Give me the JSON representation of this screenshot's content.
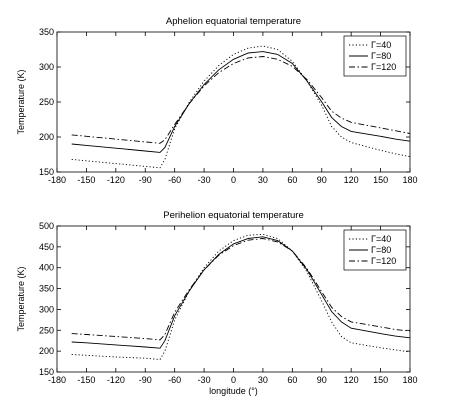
{
  "chart_data": [
    {
      "type": "line",
      "title": "Aphelion equatorial temperature",
      "xlabel": "",
      "ylabel": "Temperature (K)",
      "xlim": [
        -180,
        180
      ],
      "ylim": [
        150,
        350
      ],
      "xticks": [
        -180,
        -150,
        -120,
        -90,
        -60,
        -30,
        0,
        30,
        60,
        90,
        120,
        150,
        180
      ],
      "yticks": [
        150,
        200,
        250,
        300,
        350
      ],
      "legend_position": "top-right",
      "grid": false,
      "series": [
        {
          "name": "Γ=40",
          "style": "dotted",
          "x": [
            -165,
            -150,
            -120,
            -90,
            -75,
            -70,
            -60,
            -45,
            -30,
            -15,
            0,
            15,
            30,
            45,
            60,
            75,
            90,
            100,
            110,
            120,
            150,
            165,
            180
          ],
          "y": [
            168,
            166,
            162,
            158,
            156,
            168,
            212,
            250,
            280,
            302,
            318,
            327,
            330,
            325,
            308,
            280,
            245,
            215,
            200,
            192,
            181,
            176,
            172
          ]
        },
        {
          "name": "Γ=80",
          "style": "solid",
          "x": [
            -165,
            -150,
            -120,
            -90,
            -75,
            -70,
            -60,
            -45,
            -30,
            -15,
            0,
            15,
            30,
            45,
            60,
            75,
            90,
            100,
            110,
            120,
            150,
            165,
            180
          ],
          "y": [
            190,
            188,
            184,
            180,
            178,
            185,
            215,
            248,
            275,
            296,
            311,
            320,
            322,
            318,
            305,
            280,
            250,
            228,
            215,
            208,
            201,
            197,
            194
          ]
        },
        {
          "name": "Γ=120",
          "style": "dashdot",
          "x": [
            -165,
            -150,
            -120,
            -90,
            -75,
            -70,
            -60,
            -45,
            -30,
            -15,
            0,
            15,
            30,
            45,
            60,
            75,
            90,
            100,
            110,
            120,
            150,
            165,
            180
          ],
          "y": [
            203,
            201,
            197,
            193,
            191,
            196,
            218,
            248,
            273,
            292,
            305,
            313,
            315,
            311,
            301,
            282,
            256,
            237,
            227,
            221,
            213,
            209,
            205
          ]
        }
      ]
    },
    {
      "type": "line",
      "title": "Perihelion equatorial temperature",
      "xlabel": "longitude (°)",
      "ylabel": "Temperature (K)",
      "xlim": [
        -180,
        180
      ],
      "ylim": [
        150,
        500
      ],
      "xticks": [
        -180,
        -150,
        -120,
        -90,
        -60,
        -30,
        0,
        30,
        60,
        90,
        120,
        150,
        180
      ],
      "yticks": [
        150,
        200,
        250,
        300,
        350,
        400,
        450,
        500
      ],
      "legend_position": "top-right",
      "grid": false,
      "series": [
        {
          "name": "Γ=40",
          "style": "dotted",
          "x": [
            -165,
            -150,
            -120,
            -90,
            -75,
            -70,
            -60,
            -45,
            -30,
            -15,
            0,
            15,
            30,
            45,
            60,
            75,
            90,
            100,
            110,
            120,
            150,
            165,
            180
          ],
          "y": [
            192,
            190,
            186,
            183,
            180,
            200,
            275,
            345,
            400,
            440,
            465,
            478,
            480,
            470,
            440,
            390,
            320,
            270,
            235,
            220,
            208,
            203,
            198
          ]
        },
        {
          "name": "Γ=80",
          "style": "solid",
          "x": [
            -165,
            -150,
            -120,
            -90,
            -75,
            -70,
            -60,
            -45,
            -30,
            -15,
            0,
            15,
            30,
            45,
            60,
            75,
            90,
            100,
            110,
            120,
            150,
            165,
            180
          ],
          "y": [
            222,
            220,
            215,
            210,
            207,
            225,
            285,
            345,
            395,
            432,
            457,
            470,
            474,
            465,
            440,
            395,
            335,
            295,
            270,
            255,
            242,
            236,
            232
          ]
        },
        {
          "name": "Γ=120",
          "style": "dashdot",
          "x": [
            -165,
            -150,
            -120,
            -90,
            -75,
            -70,
            -60,
            -45,
            -30,
            -15,
            0,
            15,
            30,
            45,
            60,
            75,
            90,
            100,
            110,
            120,
            150,
            165,
            180
          ],
          "y": [
            242,
            240,
            235,
            230,
            227,
            240,
            293,
            348,
            395,
            430,
            453,
            466,
            470,
            462,
            440,
            398,
            342,
            305,
            283,
            270,
            258,
            252,
            248
          ]
        }
      ]
    }
  ]
}
